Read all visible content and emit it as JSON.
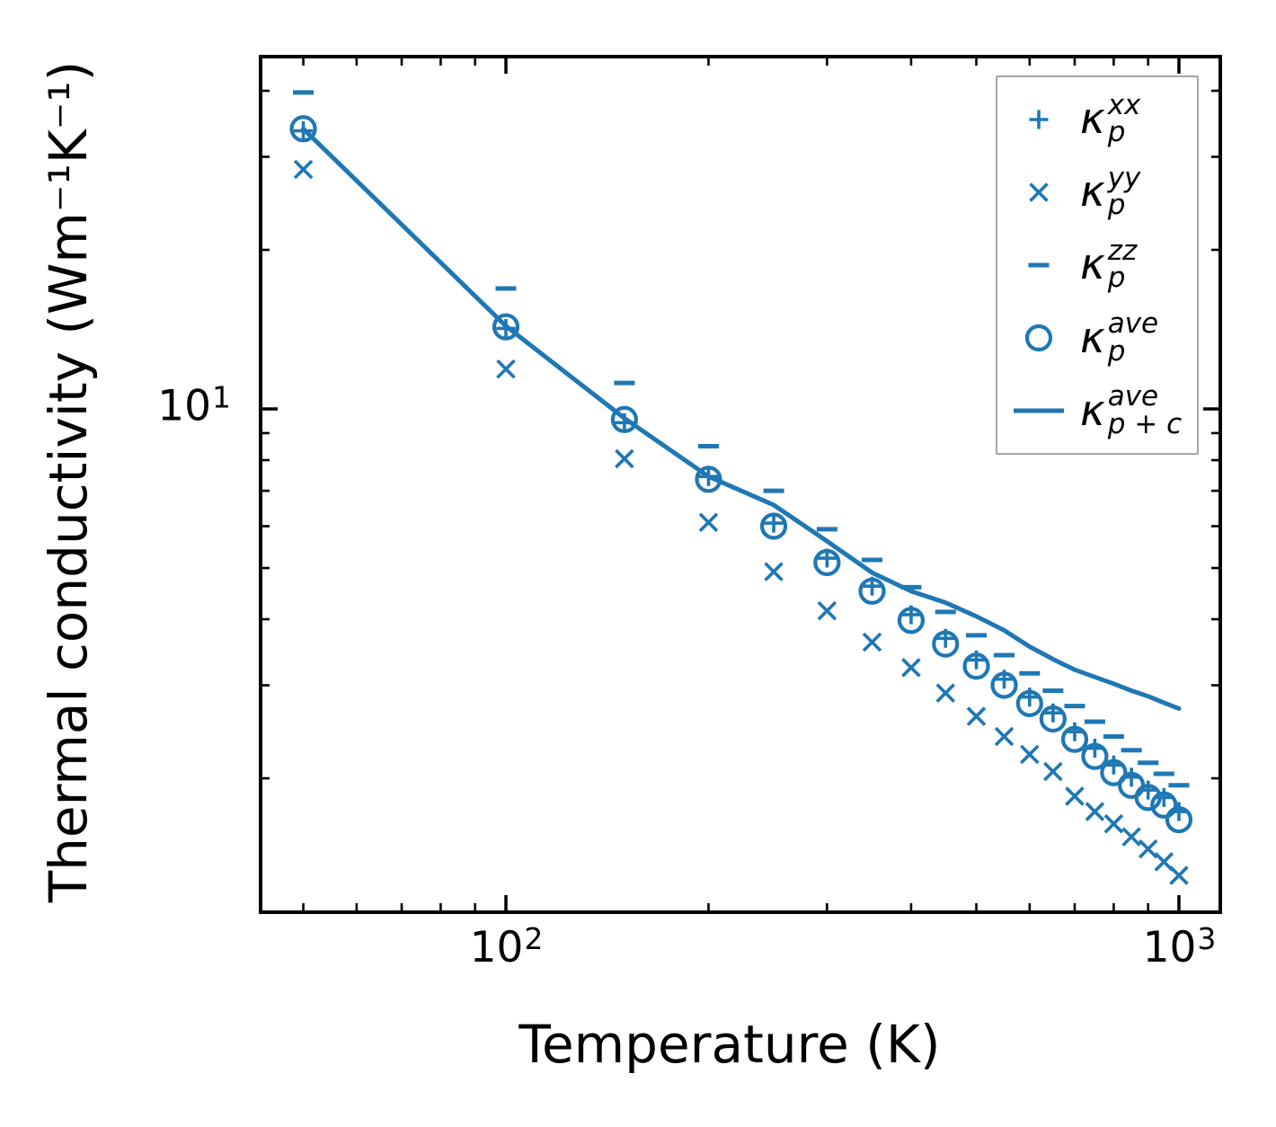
{
  "figure": {
    "xlabel": "Temperature (K)",
    "ylabel": "Thermal conductivity (Wm⁻¹K⁻¹)",
    "background_color": "#ffffff",
    "axis_color": "#000000",
    "accent_color": "#1f77b4"
  },
  "legend": {
    "entries": [
      {
        "type": "plus",
        "base": "κ",
        "sup": "xx",
        "sub": "p"
      },
      {
        "type": "cross",
        "base": "κ",
        "sup": "yy",
        "sub": "p"
      },
      {
        "type": "dash",
        "base": "κ",
        "sup": "zz",
        "sub": "p"
      },
      {
        "type": "circle",
        "base": "κ",
        "sup": "ave",
        "sub": "p"
      },
      {
        "type": "line",
        "base": "κ",
        "sup": "ave",
        "sub": "p + c"
      }
    ]
  },
  "chart_data": {
    "type": "scatter",
    "x_scale": "log",
    "y_scale": "log",
    "title": "",
    "xlabel": "Temperature (K)",
    "ylabel": "Thermal conductivity (Wm⁻¹K⁻¹)",
    "color": "#1f77b4",
    "grid": false,
    "legend_position": "upper right",
    "xlim": [
      43.2,
      1152
    ],
    "ylim": [
      1.116,
      46.42
    ],
    "x": [
      50,
      100,
      150,
      200,
      250,
      300,
      350,
      400,
      450,
      500,
      550,
      600,
      650,
      700,
      750,
      800,
      850,
      900,
      950,
      1000
    ],
    "series": [
      {
        "id": "kappa-xx",
        "name": "κ_p^xx",
        "marker": "plus",
        "values": [
          33.6,
          14.2,
          9.42,
          7.45,
          6.08,
          5.22,
          4.62,
          4.08,
          3.68,
          3.35,
          3.08,
          2.85,
          2.66,
          2.45,
          2.28,
          2.12,
          2.01,
          1.9,
          1.84,
          1.73
        ]
      },
      {
        "id": "kappa-yy",
        "name": "κ_p^yy",
        "marker": "cross",
        "values": [
          28.4,
          11.9,
          8.05,
          6.1,
          4.92,
          4.15,
          3.62,
          3.24,
          2.9,
          2.62,
          2.4,
          2.22,
          2.06,
          1.85,
          1.73,
          1.64,
          1.55,
          1.47,
          1.39,
          1.31
        ]
      },
      {
        "id": "kappa-zz",
        "name": "κ_p^zz",
        "marker": "dash",
        "values": [
          39.7,
          16.9,
          11.2,
          8.5,
          7.0,
          5.92,
          5.18,
          4.6,
          4.13,
          3.73,
          3.42,
          3.16,
          2.93,
          2.74,
          2.56,
          2.4,
          2.26,
          2.14,
          2.04,
          1.94
        ]
      },
      {
        "id": "kappa-ave",
        "name": "κ_p^ave",
        "marker": "circle",
        "values": [
          33.9,
          14.3,
          9.55,
          7.36,
          6.0,
          5.12,
          4.52,
          3.98,
          3.59,
          3.26,
          3.0,
          2.77,
          2.59,
          2.37,
          2.2,
          2.05,
          1.94,
          1.84,
          1.78,
          1.67
        ]
      },
      {
        "id": "kappa-ave-pc",
        "name": "κ_p+c^ave",
        "marker": "line",
        "values": [
          33.9,
          14.35,
          9.6,
          7.45,
          6.58,
          5.62,
          4.9,
          4.52,
          4.3,
          4.05,
          3.81,
          3.55,
          3.36,
          3.21,
          3.11,
          3.02,
          2.93,
          2.86,
          2.78,
          2.71
        ]
      }
    ],
    "x_major_ticks": [
      100,
      1000
    ],
    "x_major_tick_labels": [
      {
        "base": "10",
        "exp": "2"
      },
      {
        "base": "10",
        "exp": "3"
      }
    ],
    "x_minor_ticks": [
      50,
      60,
      70,
      80,
      90,
      200,
      300,
      400,
      500,
      600,
      700,
      800,
      900
    ],
    "y_major_ticks": [
      10
    ],
    "y_major_tick_labels": [
      {
        "base": "10",
        "exp": "1"
      }
    ],
    "y_minor_ticks": [
      2,
      3,
      4,
      5,
      6,
      7,
      8,
      9,
      20,
      30,
      40
    ]
  }
}
